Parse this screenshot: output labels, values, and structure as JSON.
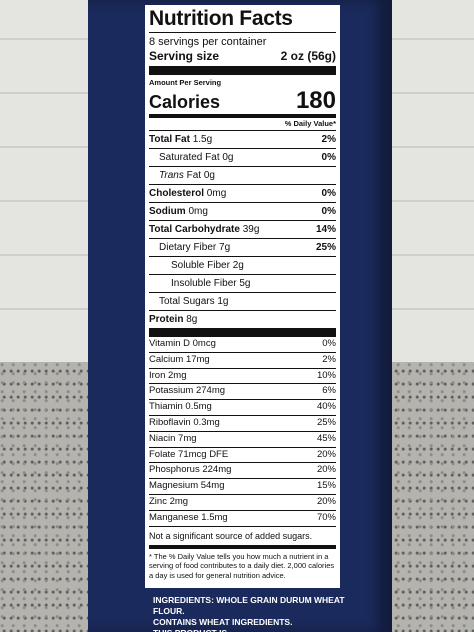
{
  "header": {
    "title": "Nutrition Facts",
    "servings": "8 servings per container",
    "serving_size_label": "Serving size",
    "serving_size": "2 oz (56g)",
    "amount_per_serving": "Amount Per Serving",
    "calories_label": "Calories",
    "calories": "180",
    "dv_header": "% Daily Value*"
  },
  "nutrients": [
    {
      "name": "Total Fat",
      "amount": "1.5g",
      "dv": "2%"
    },
    {
      "name": "Saturated Fat",
      "amount": "0g",
      "dv": "0%"
    },
    {
      "name_italic": "Trans",
      "name": "Fat",
      "amount": "0g"
    },
    {
      "name": "Cholesterol",
      "amount": "0mg",
      "dv": "0%"
    },
    {
      "name": "Sodium",
      "amount": "0mg",
      "dv": "0%"
    },
    {
      "name": "Total Carbohydrate",
      "amount": "39g",
      "dv": "14%"
    },
    {
      "name": "Dietary Fiber",
      "amount": "7g",
      "dv": "25%"
    },
    {
      "name": "Soluble Fiber",
      "amount": "2g"
    },
    {
      "name": "Insoluble Fiber",
      "amount": "5g"
    },
    {
      "name": "Total Sugars",
      "amount": "1g"
    },
    {
      "name": "Protein",
      "amount": "8g"
    }
  ],
  "vitamins": [
    {
      "name": "Vitamin D 0mcg",
      "dv": "0%"
    },
    {
      "name": "Calcium 17mg",
      "dv": "2%"
    },
    {
      "name": "Iron 2mg",
      "dv": "10%"
    },
    {
      "name": "Potassium 274mg",
      "dv": "6%"
    },
    {
      "name": "Thiamin 0.5mg",
      "dv": "40%"
    },
    {
      "name": "Riboflavin 0.3mg",
      "dv": "25%"
    },
    {
      "name": "Niacin 7mg",
      "dv": "45%"
    },
    {
      "name": "Folate 71mcg DFE",
      "dv": "20%"
    },
    {
      "name": "Phosphorus 224mg",
      "dv": "20%"
    },
    {
      "name": "Magnesium 54mg",
      "dv": "15%"
    },
    {
      "name": "Zinc 2mg",
      "dv": "20%"
    },
    {
      "name": "Manganese 1.5mg",
      "dv": "70%"
    }
  ],
  "added_sugars_note": "Not a significant source of added sugars.",
  "footnote": "* The % Daily Value tells you how much a nutrient in a serving of food contributes to a daily diet. 2,000 calories a day is used for general nutrition advice.",
  "ingredients": [
    "INGREDIENTS: WHOLE GRAIN DURUM WHEAT FLOUR.",
    "CONTAINS WHEAT INGREDIENTS.",
    "THIS PRODUCT IS"
  ]
}
